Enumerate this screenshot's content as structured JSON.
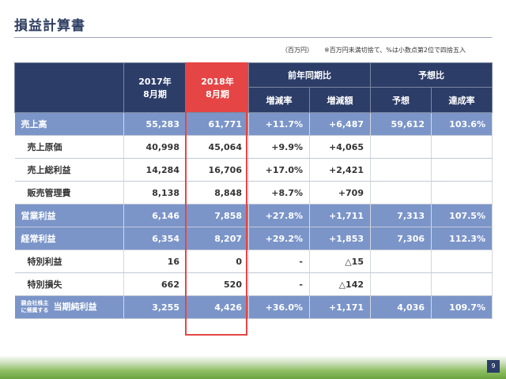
{
  "title": "損益計算書",
  "unit": "（百万円）",
  "note": "※百万円未満切捨て、%は小数点第2位で四捨五入",
  "header": {
    "col2017": "2017年",
    "col2017_sub": "8月期",
    "col2018": "2018年",
    "col2018_sub": "8月期",
    "yoy": "前年同期比",
    "yoy_rate": "増減率",
    "yoy_amount": "増減額",
    "forecast": "予想比",
    "forecast_value": "予想",
    "achievement": "達成率"
  },
  "rows": [
    {
      "label": "売上高",
      "v2017": "55,283",
      "v2018": "61,771",
      "rate": "+11.7%",
      "amount": "+6,487",
      "forecast": "59,612",
      "achv": "103.6%"
    },
    {
      "label": "売上原価",
      "v2017": "40,998",
      "v2018": "45,064",
      "rate": "+9.9%",
      "amount": "+4,065",
      "forecast": "",
      "achv": ""
    },
    {
      "label": "売上総利益",
      "v2017": "14,284",
      "v2018": "16,706",
      "rate": "+17.0%",
      "amount": "+2,421",
      "forecast": "",
      "achv": ""
    },
    {
      "label": "販売管理費",
      "v2017": "8,138",
      "v2018": "8,848",
      "rate": "+8.7%",
      "amount": "+709",
      "forecast": "",
      "achv": ""
    },
    {
      "label": "営業利益",
      "v2017": "6,146",
      "v2018": "7,858",
      "rate": "+27.8%",
      "amount": "+1,711",
      "forecast": "7,313",
      "achv": "107.5%"
    },
    {
      "label": "経常利益",
      "v2017": "6,354",
      "v2018": "8,207",
      "rate": "+29.2%",
      "amount": "+1,853",
      "forecast": "7,306",
      "achv": "112.3%"
    },
    {
      "label": "特別利益",
      "v2017": "16",
      "v2018": "0",
      "rate": "-",
      "amount": "△15",
      "forecast": "",
      "achv": ""
    },
    {
      "label": "特別損失",
      "v2017": "662",
      "v2018": "520",
      "rate": "-",
      "amount": "△142",
      "forecast": "",
      "achv": ""
    },
    {
      "label_small1": "親会社株主",
      "label_small2": "に帰属する",
      "label": "当期純利益",
      "v2017": "3,255",
      "v2018": "4,426",
      "rate": "+36.0%",
      "amount": "+1,171",
      "forecast": "4,036",
      "achv": "109.7%"
    }
  ],
  "page_number": "9",
  "colors": {
    "header": "#2c3d68",
    "main_row": "#7b95c9",
    "highlight": "#e64545"
  }
}
